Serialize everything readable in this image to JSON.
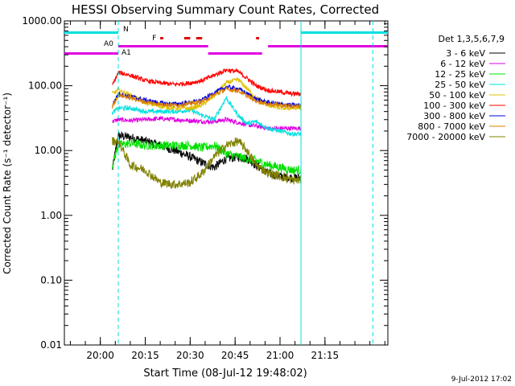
{
  "chart_data": {
    "type": "line",
    "title": "HESSI Observing Summary Count Rates, Corrected",
    "xlabel": "Start Time (08-Jul-12 19:48:02)",
    "ylabel": "Corrected Count Rate (s⁻¹ detector⁻¹)",
    "y_scale": "log",
    "ylim": [
      0.01,
      1000
    ],
    "y_ticks": [
      0.01,
      0.1,
      1,
      10,
      100,
      1000
    ],
    "y_tick_labels": [
      "0.01",
      "0.10",
      "1.00",
      "10.00",
      "100.00",
      "1000.00"
    ],
    "xlim_minutes": [
      -12,
      96
    ],
    "x_ticks": [
      {
        "t": 0,
        "label": "20:00"
      },
      {
        "t": 15,
        "label": "20:15"
      },
      {
        "t": 30,
        "label": "20:30"
      },
      {
        "t": 45,
        "label": "20:45"
      },
      {
        "t": 60,
        "label": "21:00"
      },
      {
        "t": 75,
        "label": "21:15"
      }
    ],
    "legend_title": "Det 1,3,5,6,7,9",
    "legend_position": "outside-right",
    "x": [
      4,
      6,
      10,
      15,
      20,
      25,
      30,
      34,
      38,
      42,
      46,
      49,
      52,
      56,
      60,
      64,
      66,
      67
    ],
    "series": [
      {
        "name": "3 - 6 keV",
        "color": "#000000",
        "values": [
          5,
          17,
          16,
          14,
          12,
          10,
          8,
          6.5,
          5.5,
          7.5,
          8,
          7.5,
          6,
          4.5,
          4,
          3.8,
          3.8,
          3.8
        ]
      },
      {
        "name": "6 - 12 keV",
        "color": "#e000e0",
        "values": [
          28,
          30,
          29,
          30,
          31,
          30,
          29,
          28,
          28,
          30,
          27,
          25,
          24,
          22,
          22,
          22,
          22,
          22
        ]
      },
      {
        "name": "12 - 25 keV",
        "color": "#00e000",
        "values": [
          6,
          12,
          13,
          12,
          12,
          12,
          12,
          11,
          12,
          9,
          8,
          7.5,
          7,
          6,
          5.5,
          5,
          5,
          5
        ]
      },
      {
        "name": "25 - 50 keV",
        "color": "#00e0e0",
        "values": [
          38,
          45,
          45,
          40,
          40,
          40,
          42,
          35,
          30,
          65,
          35,
          26,
          28,
          22,
          20,
          18,
          18,
          18
        ]
      },
      {
        "name": "50 - 100 keV",
        "color": "#e0c000",
        "values": [
          75,
          85,
          72,
          55,
          48,
          45,
          45,
          50,
          70,
          110,
          125,
          90,
          65,
          50,
          45,
          45,
          45,
          45
        ]
      },
      {
        "name": "100 - 300 keV",
        "color": "#ff0000",
        "values": [
          100,
          160,
          145,
          120,
          110,
          105,
          110,
          120,
          145,
          175,
          165,
          130,
          100,
          85,
          80,
          75,
          75,
          75
        ]
      },
      {
        "name": "300 - 800 keV",
        "color": "#0000e0",
        "values": [
          50,
          75,
          68,
          60,
          54,
          52,
          55,
          60,
          78,
          95,
          90,
          75,
          62,
          55,
          52,
          50,
          50,
          50
        ]
      },
      {
        "name": "800 - 7000 keV",
        "color": "#e08000",
        "values": [
          47,
          72,
          65,
          56,
          52,
          50,
          53,
          57,
          72,
          88,
          84,
          70,
          58,
          52,
          50,
          48,
          48,
          48
        ]
      },
      {
        "name": "7000 - 20000 keV",
        "color": "#808000",
        "values": [
          14,
          14,
          6,
          5,
          3.2,
          3,
          3.2,
          4.5,
          8,
          12,
          14,
          10,
          6,
          4.5,
          4,
          3.5,
          3.5,
          3.5
        ]
      }
    ],
    "flags": {
      "night": {
        "label": "N",
        "color": "#00e0e0",
        "segments": [
          [
            -12,
            6
          ],
          [
            67,
            96
          ]
        ]
      },
      "flare": {
        "label": "F",
        "color": "#e00000",
        "segments": [
          [
            20,
            21
          ],
          [
            28,
            30
          ],
          [
            32,
            34
          ],
          [
            52,
            53
          ]
        ]
      },
      "attenuator": {
        "label_a0": "A0",
        "label_a1": "A1",
        "color": "#e000e0",
        "segments_upper": [
          [
            6,
            36
          ],
          [
            56,
            96
          ]
        ],
        "segments_lower": [
          [
            -12,
            6
          ],
          [
            36,
            54
          ]
        ]
      }
    },
    "grid": false
  },
  "footer_date": "9-Jul-2012 17:02"
}
